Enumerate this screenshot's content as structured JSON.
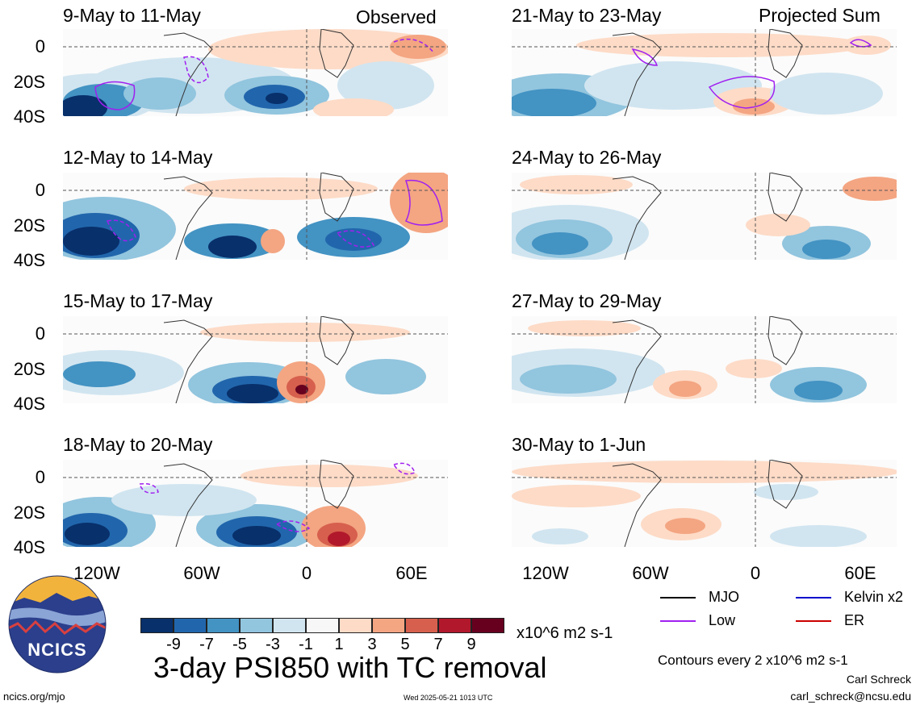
{
  "header": {
    "observed_label": "Observed",
    "projected_label": "Projected Sum"
  },
  "panels_left": [
    {
      "title": "9-May to 11-May"
    },
    {
      "title": "12-May to 14-May"
    },
    {
      "title": "15-May to 17-May"
    },
    {
      "title": "18-May to 20-May"
    }
  ],
  "panels_right": [
    {
      "title": "21-May to 23-May"
    },
    {
      "title": "24-May to 26-May"
    },
    {
      "title": "27-May to 29-May"
    },
    {
      "title": "30-May to 1-Jun"
    }
  ],
  "axes": {
    "lat_labels": [
      "0",
      "20S",
      "40S"
    ],
    "lon_labels": [
      "120W",
      "60W",
      "0",
      "60E"
    ]
  },
  "legend": {
    "mjo": "MJO",
    "kelvin": "Kelvin x2",
    "low": "Low",
    "er": "ER",
    "colors": {
      "mjo": "#000000",
      "kelvin": "#0000cc",
      "low": "#a020f0",
      "er": "#cc0000"
    }
  },
  "colorbar": {
    "colors": [
      "#08306b",
      "#2166ac",
      "#4393c3",
      "#92c5de",
      "#d1e5f0",
      "#f7f7f7",
      "#fddbc7",
      "#f4a582",
      "#d6604d",
      "#b2182b",
      "#67001f"
    ],
    "tick_labels": [
      "-9",
      "-7",
      "-5",
      "-3",
      "-1",
      "1",
      "3",
      "5",
      "7",
      "9"
    ],
    "units": "x10^6 m2 s-1"
  },
  "footer": {
    "main_title": "3-day PSI850 with TC removal",
    "logo_text": "NCICS",
    "site": "ncics.org/mjo",
    "timestamp": "Wed 2025-05-21 1013 UTC",
    "contour_note": "Contours every 2 x10^6 m2 s-1",
    "author": "Carl Schreck",
    "email": "carl_schreck@ncsu.edu"
  }
}
